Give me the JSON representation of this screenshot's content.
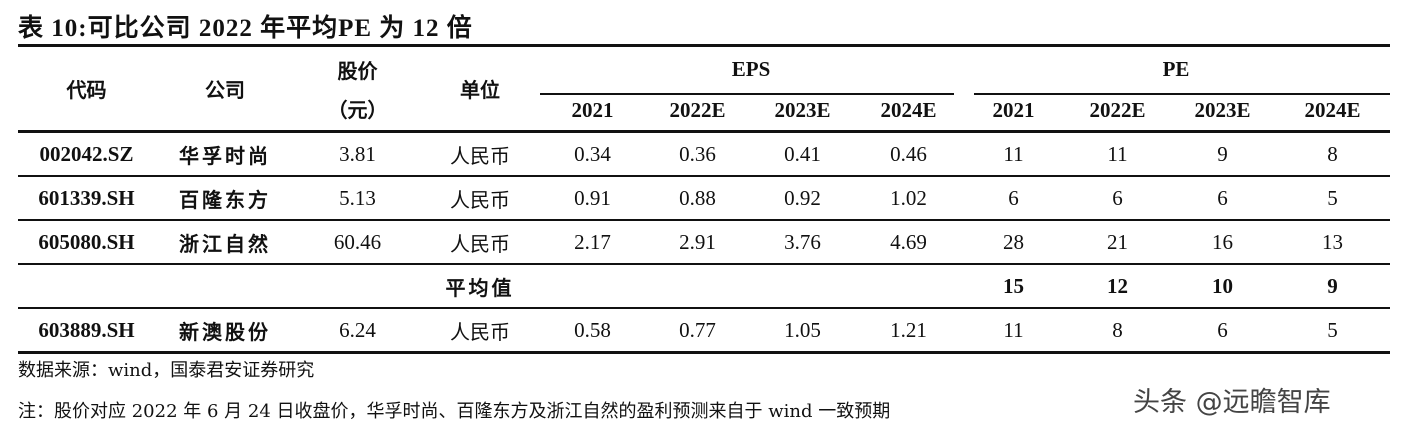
{
  "title": "表 10:可比公司 2022 年平均PE 为 12 倍",
  "header": {
    "code": "代码",
    "company": "公司",
    "price_line1": "股价",
    "price_line2": "（元）",
    "unit": "单位",
    "eps": "EPS",
    "pe": "PE",
    "years": [
      "2021",
      "2022E",
      "2023E",
      "2024E"
    ]
  },
  "rows": [
    {
      "code": "002042.SZ",
      "company": "华孚时尚",
      "price": "3.81",
      "unit": "人民币",
      "eps": [
        "0.34",
        "0.36",
        "0.41",
        "0.46"
      ],
      "pe": [
        "11",
        "11",
        "9",
        "8"
      ]
    },
    {
      "code": "601339.SH",
      "company": "百隆东方",
      "price": "5.13",
      "unit": "人民币",
      "eps": [
        "0.91",
        "0.88",
        "0.92",
        "1.02"
      ],
      "pe": [
        "6",
        "6",
        "6",
        "5"
      ]
    },
    {
      "code": "605080.SH",
      "company": "浙江自然",
      "price": "60.46",
      "unit": "人民币",
      "eps": [
        "2.17",
        "2.91",
        "3.76",
        "4.69"
      ],
      "pe": [
        "28",
        "21",
        "16",
        "13"
      ]
    }
  ],
  "average": {
    "label": "平均值",
    "pe": [
      "15",
      "12",
      "10",
      "9"
    ]
  },
  "target": {
    "code": "603889.SH",
    "company": "新澳股份",
    "price": "6.24",
    "unit": "人民币",
    "eps": [
      "0.58",
      "0.77",
      "1.05",
      "1.21"
    ],
    "pe": [
      "11",
      "8",
      "6",
      "5"
    ]
  },
  "source": "数据来源：wind，国泰君安证券研究",
  "note": "注：股价对应 2022 年 6 月 24 日收盘价，华孚时尚、百隆东方及浙江自然的盈利预测来自于 wind 一致预期",
  "watermark": "头条 @远瞻智库"
}
